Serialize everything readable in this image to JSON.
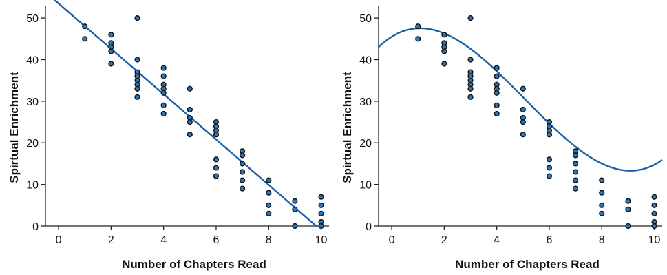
{
  "chart_data": [
    {
      "type": "scatter",
      "xlabel": "Number of Chapters Read",
      "ylabel": "Spirtual Enrichment",
      "xlim": [
        -0.5,
        10.3
      ],
      "ylim": [
        0,
        53
      ],
      "xticks": [
        0,
        2,
        4,
        6,
        8,
        10
      ],
      "yticks": [
        0,
        10,
        20,
        30,
        40,
        50
      ],
      "grid": false,
      "points": {
        "x": [
          1,
          1,
          2,
          2,
          2,
          2,
          2,
          3,
          3,
          3,
          3,
          3,
          3,
          3,
          3,
          3,
          4,
          4,
          4,
          4,
          4,
          4,
          4,
          5,
          5,
          5,
          5,
          5,
          6,
          6,
          6,
          6,
          6,
          6,
          6,
          6,
          7,
          7,
          7,
          7,
          7,
          7,
          8,
          8,
          8,
          8,
          9,
          9,
          9,
          10,
          10,
          10,
          10,
          10
        ],
        "y": [
          48,
          45,
          46,
          44,
          43,
          42,
          39,
          50,
          40,
          37,
          36,
          35,
          34,
          33,
          31,
          36,
          38,
          36,
          34,
          33,
          32,
          29,
          27,
          33,
          28,
          26,
          25,
          22,
          25,
          24,
          23,
          22,
          16,
          14,
          12,
          22,
          18,
          17,
          15,
          13,
          11,
          9,
          11,
          8,
          5,
          3,
          6,
          4,
          0,
          7,
          5,
          3,
          1,
          0
        ]
      },
      "fit": {
        "kind": "linear",
        "intercept": 53.5,
        "slope": -5.45,
        "x_range": [
          -0.5,
          9.85
        ]
      },
      "colors": {
        "points": "#2e75b6",
        "line": "#1a5fa8"
      }
    },
    {
      "type": "scatter",
      "xlabel": "Number of Chapters Read",
      "ylabel": "Spirtual Enrichment",
      "xlim": [
        -0.5,
        10.3
      ],
      "ylim": [
        0,
        53
      ],
      "xticks": [
        0,
        2,
        4,
        6,
        8,
        10
      ],
      "yticks": [
        0,
        10,
        20,
        30,
        40,
        50
      ],
      "grid": false,
      "points": {
        "x": [
          1,
          1,
          2,
          2,
          2,
          2,
          2,
          3,
          3,
          3,
          3,
          3,
          3,
          3,
          3,
          3,
          4,
          4,
          4,
          4,
          4,
          4,
          4,
          5,
          5,
          5,
          5,
          5,
          6,
          6,
          6,
          6,
          6,
          6,
          6,
          6,
          7,
          7,
          7,
          7,
          7,
          7,
          8,
          8,
          8,
          8,
          9,
          9,
          9,
          10,
          10,
          10,
          10,
          10
        ],
        "y": [
          48,
          45,
          46,
          44,
          43,
          42,
          39,
          50,
          40,
          37,
          36,
          35,
          34,
          33,
          31,
          36,
          38,
          36,
          34,
          33,
          32,
          29,
          27,
          33,
          28,
          26,
          25,
          22,
          25,
          24,
          23,
          22,
          16,
          14,
          12,
          22,
          18,
          17,
          15,
          13,
          11,
          9,
          11,
          8,
          5,
          3,
          6,
          4,
          0,
          7,
          5,
          3,
          1,
          0
        ]
      },
      "fit": {
        "kind": "cubic",
        "coefficients": [
          45.5,
          3.944,
          -2.038,
          0.1336
        ],
        "x_range": [
          -0.5,
          10.3
        ]
      },
      "colors": {
        "points": "#2e75b6",
        "line": "#1a5fa8"
      }
    }
  ]
}
